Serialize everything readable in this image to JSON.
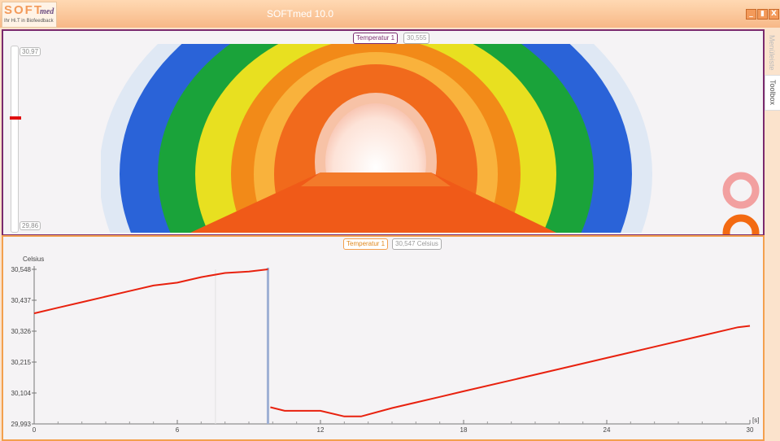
{
  "app": {
    "title": "SOFTmed 10.0",
    "logo_text": "SOFT",
    "logo_suffix": "med",
    "logo_tagline": "Ihr Hi.T in Biofeedback"
  },
  "window_controls": {
    "minimize": "_",
    "maximize": "▮",
    "close": "X"
  },
  "sidebar": {
    "tabs": [
      "Menüleiste",
      "Toolbox"
    ]
  },
  "thermo_panel": {
    "channel_label": "Temperatur 1",
    "channel_value": "30,555",
    "scale_max": "30,97",
    "scale_min": "29,86",
    "level_fraction": 0.62
  },
  "chart_panel": {
    "channel_label": "Temperatur 1",
    "channel_value": "30,547 Celsius"
  },
  "colors": {
    "accent_purple": "#7a2a6e",
    "accent_orange": "#f3a04e",
    "line": "#e8210e"
  },
  "chart_data": {
    "type": "line",
    "ylabel": "Celsius",
    "xunit": "[s]",
    "ylim": [
      29.993,
      30.548
    ],
    "xlim": [
      0,
      30
    ],
    "yticks": [
      "30,548",
      "30,437",
      "30,326",
      "30,215",
      "30,104",
      "29,993"
    ],
    "ytick_values": [
      30.548,
      30.437,
      30.326,
      30.215,
      30.104,
      29.993
    ],
    "xticks": [
      "0",
      "6",
      "12",
      "18",
      "24",
      "30"
    ],
    "xtick_values": [
      0,
      6,
      12,
      18,
      24,
      30
    ],
    "cursor_x": 9.8,
    "series": [
      {
        "values": [
          [
            0,
            30.39
          ],
          [
            1,
            30.41
          ],
          [
            2,
            30.43
          ],
          [
            3,
            30.45
          ],
          [
            4,
            30.47
          ],
          [
            5,
            30.49
          ],
          [
            6,
            30.5
          ],
          [
            7,
            30.52
          ],
          [
            8,
            30.535
          ],
          [
            9,
            30.54
          ],
          [
            9.8,
            30.548
          ]
        ]
      },
      {
        "values": [
          [
            9.9,
            30.053
          ],
          [
            10.5,
            30.04
          ],
          [
            12,
            30.04
          ],
          [
            13,
            30.02
          ],
          [
            13.7,
            30.02
          ],
          [
            15,
            30.05
          ],
          [
            17,
            30.09
          ],
          [
            18,
            30.11
          ],
          [
            20,
            30.15
          ],
          [
            22,
            30.19
          ],
          [
            24,
            30.23
          ],
          [
            26,
            30.27
          ],
          [
            28,
            30.31
          ],
          [
            29.5,
            30.34
          ],
          [
            30,
            30.345
          ]
        ]
      }
    ]
  }
}
